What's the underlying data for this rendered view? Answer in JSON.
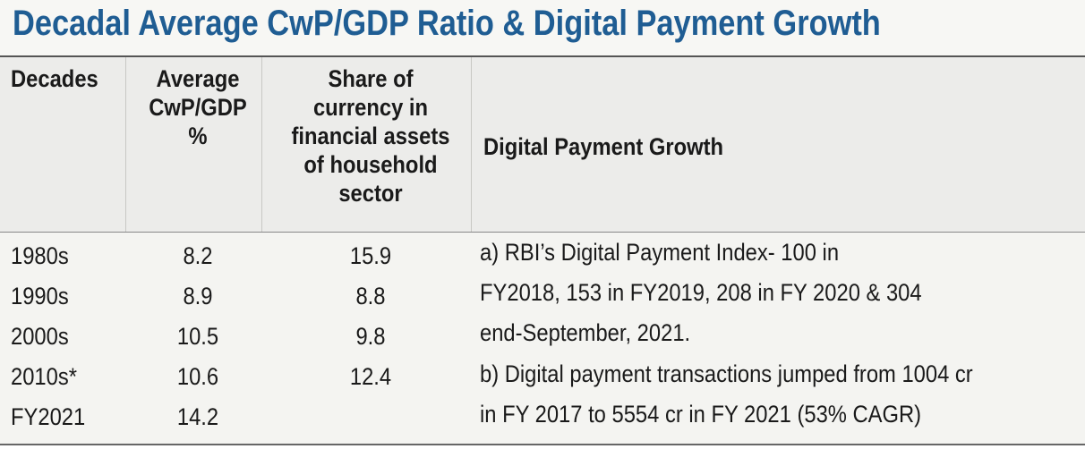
{
  "title": "Decadal  Average CwP/GDP Ratio & Digital Payment Growth",
  "table": {
    "headers": [
      "Decades",
      "Average\nCwP/GDP\n%",
      "Share of\ncurrency in\nfinancial assets\nof  household\nsector",
      "Digital Payment  Growth"
    ],
    "rows": [
      {
        "decade": "1980s",
        "cwp_gdp": "8.2",
        "currency_share": "15.9"
      },
      {
        "decade": "1990s",
        "cwp_gdp": "8.9",
        "currency_share": "8.8"
      },
      {
        "decade": "2000s",
        "cwp_gdp": "10.5",
        "currency_share": "9.8"
      },
      {
        "decade": "2010s*",
        "cwp_gdp": "10.6",
        "currency_share": "12.4"
      },
      {
        "decade": "FY2021",
        "cwp_gdp": "14.2",
        "currency_share": ""
      }
    ],
    "digital_payment_lines": [
      "a) RBI’s Digital Payment Index-   100 in",
      "FY2018, 153 in FY2019, 208 in FY 2020 & 304",
      "end-September, 2021.",
      "b) Digital payment transactions  jumped from 1004 cr",
      "in FY 2017 to 5554 cr in FY 2021 (53% CAGR)"
    ]
  },
  "colors": {
    "title": "#1f5d93",
    "header_bg": "#ececea",
    "body_bg": "#f4f4f1"
  }
}
